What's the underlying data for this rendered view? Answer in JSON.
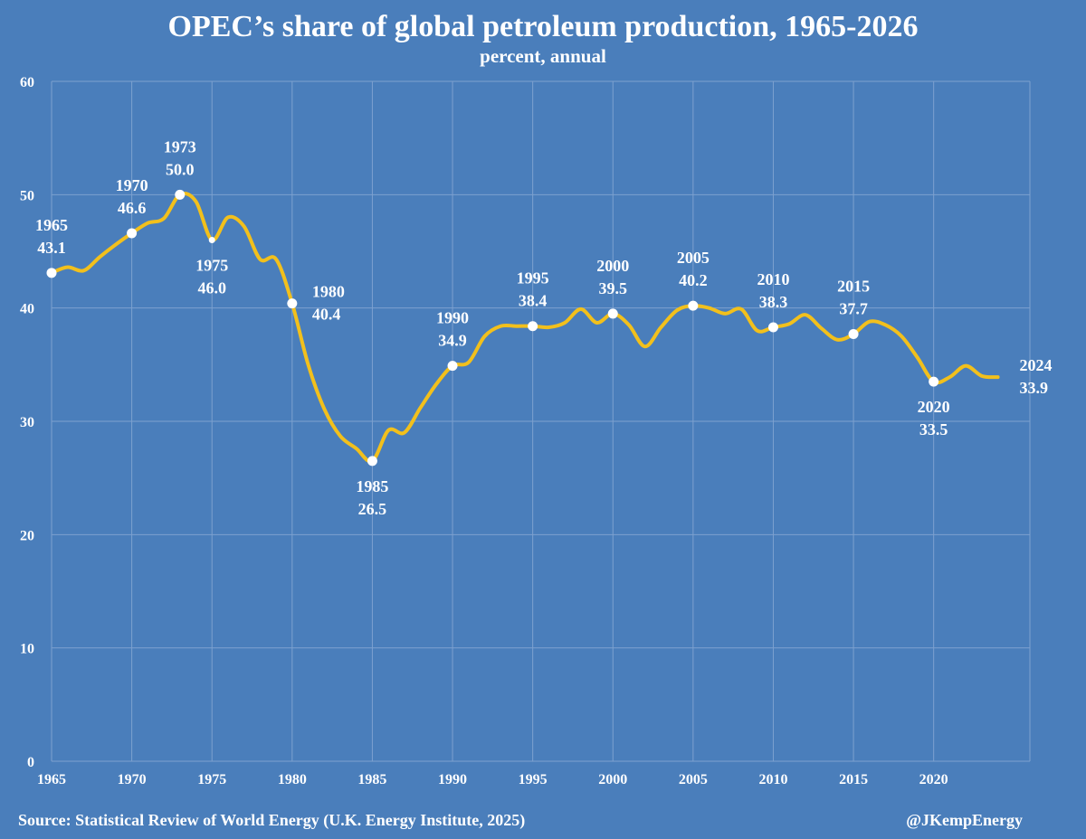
{
  "chart_data": {
    "type": "line",
    "title": "OPEC’s share of global petroleum production, 1965-2026",
    "subtitle": "percent, annual",
    "xlabel": "",
    "ylabel": "",
    "ylim": [
      0,
      60
    ],
    "xlim": [
      1965,
      2026
    ],
    "y_ticks": [
      0,
      10,
      20,
      30,
      40,
      50,
      60
    ],
    "x_ticks": [
      1965,
      1970,
      1975,
      1980,
      1985,
      1990,
      1995,
      2000,
      2005,
      2010,
      2015,
      2020
    ],
    "grid": true,
    "legend": "none",
    "line_color": "#f2c01c",
    "background_color": "#4a7ebb",
    "x": [
      1965,
      1966,
      1967,
      1968,
      1969,
      1970,
      1971,
      1972,
      1973,
      1974,
      1975,
      1976,
      1977,
      1978,
      1979,
      1980,
      1981,
      1982,
      1983,
      1984,
      1985,
      1986,
      1987,
      1988,
      1989,
      1990,
      1991,
      1992,
      1993,
      1994,
      1995,
      1996,
      1997,
      1998,
      1999,
      2000,
      2001,
      2002,
      2003,
      2004,
      2005,
      2006,
      2007,
      2008,
      2009,
      2010,
      2011,
      2012,
      2013,
      2014,
      2015,
      2016,
      2017,
      2018,
      2019,
      2020,
      2021,
      2022,
      2023,
      2024
    ],
    "series": [
      {
        "values": [
          43.1,
          43.6,
          43.3,
          44.5,
          45.6,
          46.6,
          47.5,
          47.9,
          50.0,
          49.4,
          46.0,
          48.0,
          47.2,
          44.3,
          44.3,
          40.4,
          35.0,
          31.1,
          28.7,
          27.6,
          26.5,
          29.2,
          29.0,
          31.2,
          33.3,
          34.9,
          35.2,
          37.5,
          38.4,
          38.4,
          38.4,
          38.3,
          38.7,
          39.9,
          38.7,
          39.5,
          38.5,
          36.6,
          38.3,
          39.8,
          40.2,
          40.0,
          39.5,
          39.9,
          38.0,
          38.3,
          38.6,
          39.4,
          38.2,
          37.2,
          37.7,
          38.8,
          38.5,
          37.5,
          35.6,
          33.5,
          33.9,
          34.9,
          34.0,
          33.9
        ]
      }
    ],
    "annotations": [
      {
        "year": 1965,
        "value": 43.1,
        "year_label": "1965",
        "value_label": "43.1",
        "pos": "above"
      },
      {
        "year": 1970,
        "value": 46.6,
        "year_label": "1970",
        "value_label": "46.6",
        "pos": "above"
      },
      {
        "year": 1973,
        "value": 50.0,
        "year_label": "1973",
        "value_label": "50.0",
        "pos": "above"
      },
      {
        "year": 1975,
        "value": 46.0,
        "year_label": "1975",
        "value_label": "46.0",
        "pos": "below"
      },
      {
        "year": 1980,
        "value": 40.4,
        "year_label": "1980",
        "value_label": "40.4",
        "pos": "right"
      },
      {
        "year": 1985,
        "value": 26.5,
        "year_label": "1985",
        "value_label": "26.5",
        "pos": "below"
      },
      {
        "year": 1990,
        "value": 34.9,
        "year_label": "1990",
        "value_label": "34.9",
        "pos": "above"
      },
      {
        "year": 1995,
        "value": 38.4,
        "year_label": "1995",
        "value_label": "38.4",
        "pos": "above"
      },
      {
        "year": 2000,
        "value": 39.5,
        "year_label": "2000",
        "value_label": "39.5",
        "pos": "above"
      },
      {
        "year": 2005,
        "value": 40.2,
        "year_label": "2005",
        "value_label": "40.2",
        "pos": "above"
      },
      {
        "year": 2010,
        "value": 38.3,
        "year_label": "2010",
        "value_label": "38.3",
        "pos": "above"
      },
      {
        "year": 2015,
        "value": 37.7,
        "year_label": "2015",
        "value_label": "37.7",
        "pos": "above"
      },
      {
        "year": 2020,
        "value": 33.5,
        "year_label": "2020",
        "value_label": "33.5",
        "pos": "below"
      },
      {
        "year": 2024,
        "value": 33.9,
        "year_label": "2024",
        "value_label": "33.9",
        "pos": "right"
      }
    ]
  },
  "footer": {
    "source": "Source: Statistical Review of World Energy (U.K. Energy Institute, 2025)",
    "handle": "@JKempEnergy"
  }
}
